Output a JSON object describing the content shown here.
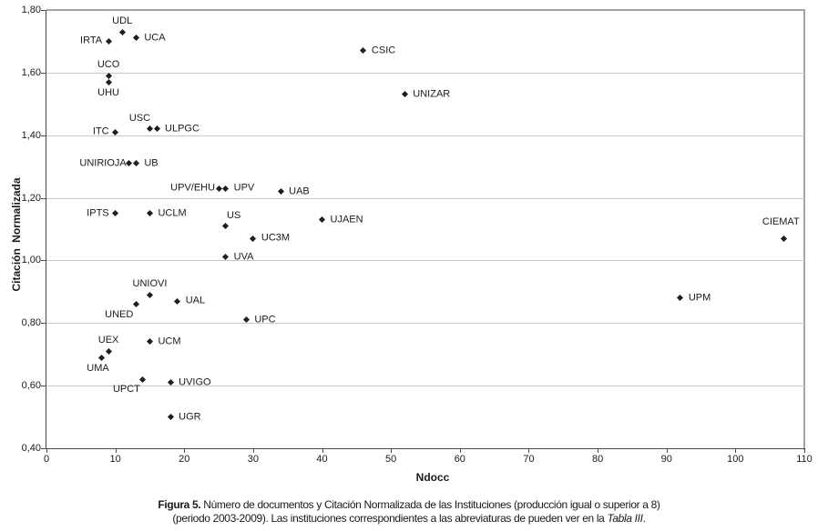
{
  "chart_data": {
    "type": "scatter",
    "title": "",
    "xlabel": "Ndocc",
    "ylabel": "Citación Normalizada",
    "xlim": [
      0,
      110
    ],
    "ylim": [
      0.4,
      1.8
    ],
    "x_ticks": [
      0,
      10,
      20,
      30,
      40,
      50,
      60,
      70,
      80,
      90,
      100,
      110
    ],
    "x_tick_labels": [
      "0",
      "10",
      "20",
      "30",
      "40",
      "50",
      "60",
      "70",
      "80",
      "90",
      "100",
      "110"
    ],
    "y_ticks": [
      0.4,
      0.6,
      0.8,
      1.0,
      1.2,
      1.4,
      1.6,
      1.8
    ],
    "y_tick_labels": [
      "0,40",
      "0,60",
      "0,80",
      "1,00",
      "1,20",
      "1,40",
      "1,60",
      "1,80"
    ],
    "grid": "horizontal-only",
    "legend": "none",
    "marker": "diamond",
    "points": [
      {
        "label": "UDL",
        "x": 11,
        "y": 1.73,
        "label_pos": "above"
      },
      {
        "label": "IRTA",
        "x": 9,
        "y": 1.7,
        "label_pos": "left"
      },
      {
        "label": "UCA",
        "x": 13,
        "y": 1.71,
        "label_pos": "right"
      },
      {
        "label": "UCO",
        "x": 9,
        "y": 1.59,
        "label_pos": "above"
      },
      {
        "label": "UHU",
        "x": 9,
        "y": 1.57,
        "label_pos": "below"
      },
      {
        "label": "CSIC",
        "x": 46,
        "y": 1.67,
        "label_pos": "right"
      },
      {
        "label": "UNIZAR",
        "x": 52,
        "y": 1.53,
        "label_pos": "right"
      },
      {
        "label": "USC",
        "x": 15,
        "y": 1.42,
        "label_pos": "above",
        "ldx": -11
      },
      {
        "label": "ULPGC",
        "x": 16,
        "y": 1.42,
        "label_pos": "right"
      },
      {
        "label": "ITC",
        "x": 10,
        "y": 1.41,
        "label_pos": "left"
      },
      {
        "label": "UNIRIOJA",
        "x": 12,
        "y": 1.31,
        "label_pos": "left",
        "ldx": 4
      },
      {
        "label": "UB",
        "x": 13,
        "y": 1.31,
        "label_pos": "right"
      },
      {
        "label": "UPV/EHU",
        "x": 25,
        "y": 1.23,
        "label_pos": "left",
        "ldx": 3
      },
      {
        "label": "UPV",
        "x": 26,
        "y": 1.23,
        "label_pos": "right"
      },
      {
        "label": "UAB",
        "x": 34,
        "y": 1.22,
        "label_pos": "right"
      },
      {
        "label": "IPTS",
        "x": 10,
        "y": 1.15,
        "label_pos": "left"
      },
      {
        "label": "UCLM",
        "x": 15,
        "y": 1.15,
        "label_pos": "right"
      },
      {
        "label": "US",
        "x": 26,
        "y": 1.11,
        "label_pos": "above",
        "ldx": 9
      },
      {
        "label": "UJAEN",
        "x": 40,
        "y": 1.13,
        "label_pos": "right"
      },
      {
        "label": "UC3M",
        "x": 30,
        "y": 1.07,
        "label_pos": "right"
      },
      {
        "label": "UVA",
        "x": 26,
        "y": 1.01,
        "label_pos": "right"
      },
      {
        "label": "CIEMAT",
        "x": 107,
        "y": 1.07,
        "label_pos": "above",
        "ldx": -3,
        "ldy": -6
      },
      {
        "label": "UNIOVI",
        "x": 15,
        "y": 0.89,
        "label_pos": "above"
      },
      {
        "label": "UNED",
        "x": 13,
        "y": 0.86,
        "label_pos": "below-left"
      },
      {
        "label": "UAL",
        "x": 19,
        "y": 0.87,
        "label_pos": "right"
      },
      {
        "label": "UPC",
        "x": 29,
        "y": 0.81,
        "label_pos": "right"
      },
      {
        "label": "UPM",
        "x": 92,
        "y": 0.88,
        "label_pos": "right"
      },
      {
        "label": "UCM",
        "x": 15,
        "y": 0.74,
        "label_pos": "right"
      },
      {
        "label": "UEX",
        "x": 9,
        "y": 0.71,
        "label_pos": "above"
      },
      {
        "label": "UMA",
        "x": 8,
        "y": 0.69,
        "label_pos": "below",
        "ldx": -4
      },
      {
        "label": "UPCT",
        "x": 14,
        "y": 0.62,
        "label_pos": "below-left"
      },
      {
        "label": "UVIGO",
        "x": 18,
        "y": 0.61,
        "label_pos": "right"
      },
      {
        "label": "UGR",
        "x": 18,
        "y": 0.5,
        "label_pos": "right"
      }
    ]
  },
  "caption": {
    "line1_bold": "Figura 5.",
    "line1_rest": " Número de documentos y Citación Normalizada de las Instituciones (producción igual o superior a 8)",
    "line2_pre": "(periodo 2003-2009). Las instituciones correspondientes a las abreviaturas de pueden ver en la ",
    "line2_italic": "Tabla III",
    "line2_post": "."
  },
  "colors": {
    "marker": "#1f1f1f",
    "grid": "#c9c9c9",
    "axis": "#4a4a4a",
    "border": "#a3a3a3",
    "text": "#1a1a1a"
  }
}
